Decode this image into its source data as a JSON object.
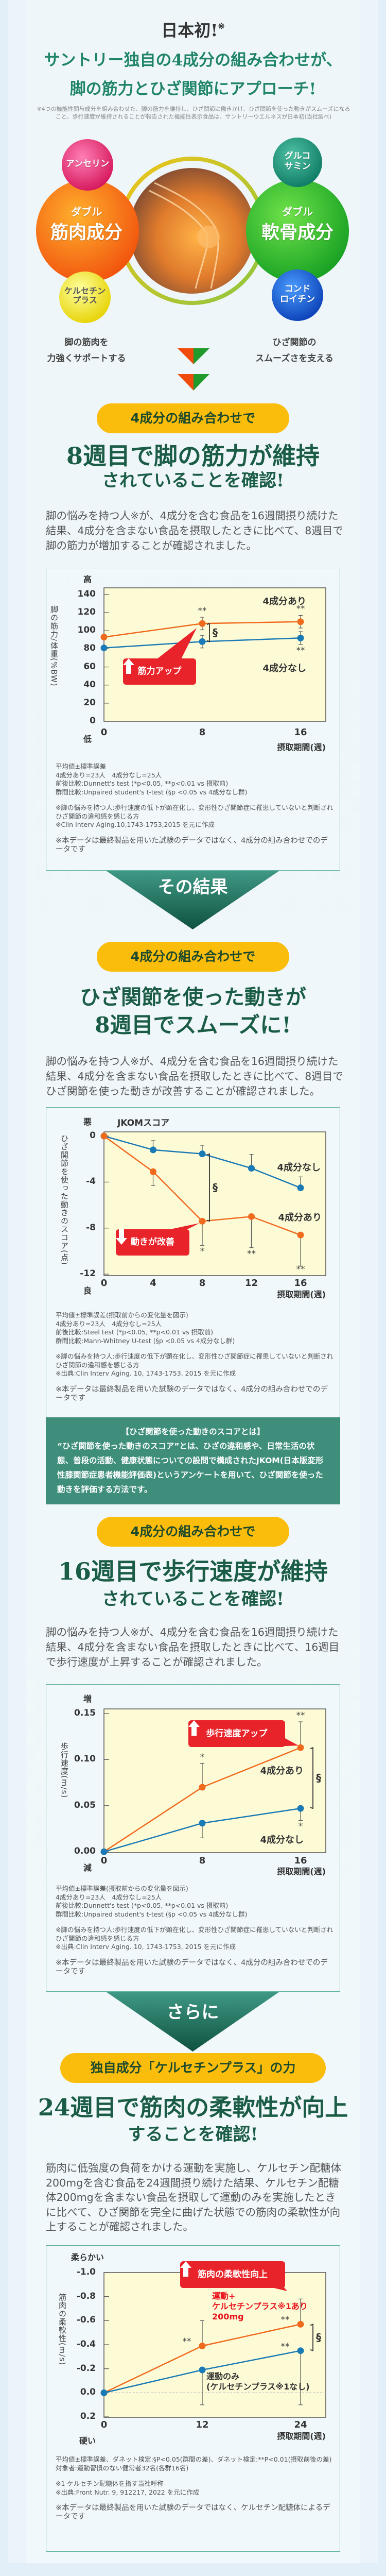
{
  "intro": {
    "badge": "日本初!",
    "badge_mark": "※",
    "headline_lines": [
      "サントリー独自の4成分の組み合わせが、",
      "脚の筋力とひざ関節にアプローチ!"
    ],
    "footnote": "※4つの機能性関与成分を組み合わせた、脚の筋力を維持し、ひざ関節に働きかけ、ひざ関節を使った動きがスムーズになること、歩行速度が維持されることが報告された機能性表示食品は、サントリーウエルネスが日本初(当社調べ)",
    "muscle": {
      "small": "ダブル",
      "big": "筋肉成分",
      "item1": "アンセリン",
      "item2": "ケルセチン\nプラス",
      "caption": [
        "脚の筋肉を",
        "力強くサポートする"
      ]
    },
    "cartilage": {
      "small": "ダブル",
      "big": "軟骨成分",
      "item1": "グルコ\nサミン",
      "item2": "コンド\nロイチン",
      "caption": [
        "ひざ関節の",
        "スムーズさを支える"
      ]
    }
  },
  "colors": {
    "accent_green": "#1a5c45",
    "pill": "#fbbd0c",
    "orange": "#f06a1e",
    "blue": "#1a7ab5",
    "callout_red": "#e9232a",
    "plot_bg": "#fdfbd6",
    "teal": "#3f8e7c"
  },
  "transitions": [
    "その結果",
    "さらに"
  ],
  "sections": [
    {
      "pill": "4成分の組み合わせで",
      "headline": [
        "8週目で脚の筋力が維持",
        "されていることを確認!"
      ],
      "body": "脚の悩みを持つ人※が、4成分を含む食品を16週間摂り続けた結果、4成分を含まない食品を摂取したときに比べて、8週目で脚の筋力が増加することが確認されました。",
      "notes": [
        [
          "平均値±標準誤差",
          "4成分あり=23人　4成分なし=25人",
          "前後比較:Dunnett's test (*p<0.05, **p<0.01 vs 摂取前)",
          "群間比較:Unpaired student's t-test (§p <0.05 vs 4成分なし群)"
        ],
        [
          "※脚の悩みを持つ人:歩行速度の低下が顕在化し、変形性ひざ関節症に罹患していないと判断されひざ関節の違和感を感じる方",
          "※Clin Interv Aging.10,1743-1753,2015 を元に作成"
        ]
      ],
      "disclaimer": "※本データは最終製品を用いた試験のデータではなく、4成分の組み合わせでのデータです"
    },
    {
      "pill": "4成分の組み合わせで",
      "headline": [
        "ひざ関節を使った動きが",
        "8週目でスムーズに!"
      ],
      "body": "脚の悩みを持つ人※が、4成分を含む食品を16週間摂り続けた結果、4成分を含まない食品を摂取したときに比べて、8週目でひざ関節を使った動きが改善することが確認されました。",
      "notes": [
        [
          "平均値±標準誤差(摂取前からの変化量を図示)",
          "4成分あり=23人　4成分なし=25人",
          "前後比較:Steel test (*p<0.05, **p<0.01 vs 摂取前)",
          "群間比較:Mann-Whitney U-test (§p <0.05 vs 4成分なし群)"
        ],
        [
          "※脚の悩みを持つ人:歩行速度の低下が顕在化し、変形性ひざ関節症に罹患していないと判断されひざ関節の違和感を感じる方",
          "※出典:Clin Interv Aging. 10, 1743-1753, 2015 を元に作成"
        ]
      ],
      "disclaimer": "※本データは最終製品を用いた試験のデータではなく、4成分の組み合わせでのデータです"
    },
    {
      "pill": "4成分の組み合わせで",
      "headline": [
        "16週目で歩行速度が維持",
        "されていることを確認!"
      ],
      "body": "脚の悩みを持つ人※が、4成分を含む食品を16週間摂り続けた結果、4成分を含まない食品を摂取したときに比べて、16週目で歩行速度が上昇することが確認されました。",
      "notes": [
        [
          "平均値±標準誤差(摂取前からの変化量を図示)",
          "4成分あり=23人　4成分なし=25人",
          "前後比較:Dunnett's test (*p<0.05, **p<0.01 vs 摂取前)",
          "群間比較:Unpaired student's t-test (§p <0.05 vs 4成分なし群)"
        ],
        [
          "※脚の悩みを持つ人:歩行速度の低下が顕在化し、変形性ひざ関節症に罹患していないと判断されひざ関節の違和感を感じる方",
          "※出典:Clin Interv Aging. 10, 1743-1753, 2015 を元に作成"
        ]
      ],
      "disclaimer": "※本データは最終製品を用いた試験のデータではなく、4成分の組み合わせでのデータです"
    },
    {
      "pill": "独自成分「ケルセチンプラス」の力",
      "headline": [
        "24週目で筋肉の柔軟性が向上",
        "することを確認!"
      ],
      "body": "筋肉に低強度の負荷をかける運動を実施し、ケルセチン配糖体200mgを含む食品を24週間摂り続けた結果、ケルセチン配糖体200mgを含まない食品を摂取して運動のみを実施したときに比べて、ひざ関節を完全に曲げた状態での筋肉の柔軟性が向上することが確認されました。",
      "notes": [
        [
          "平均値±標準誤差、ダネット検定:§P<0.05(群間の差)、ダネット検定:**P<0.01(摂取前後の差)",
          "対象者:運動習慣のない健常者32名(各群16名)"
        ],
        [
          "※1 ケルセチン配糖体を指す当社呼称",
          "※出典:Front Nutr. 9, 912217, 2022 を元に作成"
        ]
      ],
      "disclaimer": "※本データは最終製品を用いた試験のデータではなく、ケルセチン配糖体によるデータです"
    }
  ],
  "jkom": {
    "title": "【ひざ関節を使った動きのスコアとは】",
    "body": "“ひざ関節を使った動きのスコア”とは、ひざの違和感や、日常生活の状態、普段の活動、健康状態についての設問で構成されたJKOM(日本版変形性膝関節症患者機能評価表)というアンケートを用いて、ひざ関節を使った動きを評価する方法です。"
  },
  "chart_data": [
    {
      "type": "line",
      "ylabel": "脚の筋力/体重(%BW)",
      "y_high_label": "高",
      "y_low_label": "低",
      "xlabel": "摂取期間(週)",
      "xticks": [
        "0",
        "8",
        "16"
      ],
      "yticks": [
        "0",
        "20",
        "40",
        "60",
        "80",
        "100",
        "120",
        "140"
      ],
      "ylim": [
        0,
        140
      ],
      "series": [
        {
          "name_lines": [
            "4成分あり"
          ],
          "color": "#f06a1e",
          "x": [
            0,
            8,
            16
          ],
          "values": [
            93,
            108,
            110
          ],
          "error_upper": [
            null,
            115,
            117
          ],
          "error_lower": [
            null,
            101,
            103
          ],
          "sig": [
            null,
            "**",
            "**"
          ]
        },
        {
          "name_lines": [
            "4成分なし"
          ],
          "color": "#1a7ab5",
          "x": [
            0,
            8,
            16
          ],
          "values": [
            81,
            88,
            92
          ],
          "error_upper": [
            null,
            95,
            99
          ],
          "error_lower": [
            null,
            81,
            85
          ],
          "sig": [
            null,
            null,
            "**"
          ]
        }
      ],
      "group_significance": {
        "x": 8,
        "mark": "§"
      },
      "callout": {
        "text": "筋力アップ",
        "arrow": "up"
      }
    },
    {
      "type": "line",
      "title": "JKOMスコア",
      "ylabel": "ひざ関節を使った動きのスコア(点)",
      "y_high_label": "悪",
      "y_low_label": "良",
      "xlabel": "摂取期間(週)",
      "xticks": [
        "0",
        "4",
        "8",
        "12",
        "16"
      ],
      "yticks": [
        "0",
        "-4",
        "-8",
        "-12"
      ],
      "ylim": [
        -12,
        0
      ],
      "series": [
        {
          "name_lines": [
            "4成分なし"
          ],
          "color": "#1a7ab5",
          "x": [
            0,
            4,
            8,
            12,
            16
          ],
          "values": [
            0,
            -1.2,
            -1.55,
            -2.8,
            -4.5
          ],
          "error_upper": [
            null,
            -0.4,
            -0.8,
            -1.6,
            -3.55
          ],
          "error_lower": [
            null,
            null,
            null,
            null,
            null
          ],
          "sig": [
            null,
            null,
            null,
            null,
            null
          ]
        },
        {
          "name_lines": [
            "4成分あり"
          ],
          "color": "#f06a1e",
          "x": [
            0,
            4,
            8,
            12,
            16
          ],
          "values": [
            0,
            -3.1,
            -7.4,
            -7.0,
            -8.6
          ],
          "error_upper": [
            null,
            null,
            null,
            null,
            null
          ],
          "error_lower": [
            null,
            -4.3,
            -9.5,
            -9.7,
            -11.3
          ],
          "sig": [
            null,
            null,
            "*",
            "**",
            "**"
          ]
        }
      ],
      "group_significance": {
        "x": 8,
        "mark": "§"
      },
      "callout": {
        "text": "動きが改善",
        "arrow": "down"
      }
    },
    {
      "type": "line",
      "ylabel": "歩行速度(m/s)",
      "y_high_label": "増",
      "y_low_label": "減",
      "xlabel": "摂取期間(週)",
      "xticks": [
        "0",
        "8",
        "16"
      ],
      "yticks": [
        "0.00",
        "0.05",
        "0.10",
        "0.15"
      ],
      "ylim": [
        0,
        0.15
      ],
      "series": [
        {
          "name_lines": [
            "4成分あり"
          ],
          "color": "#f06a1e",
          "x": [
            0,
            8,
            16
          ],
          "values": [
            0,
            0.07,
            0.113
          ],
          "error_upper": [
            null,
            0.096,
            0.141
          ],
          "error_lower": [
            null,
            null,
            null
          ],
          "sig": [
            null,
            "*",
            "**"
          ]
        },
        {
          "name_lines": [
            "4成分なし"
          ],
          "color": "#1a7ab5",
          "x": [
            0,
            8,
            16
          ],
          "values": [
            0,
            0.031,
            0.047
          ],
          "error_upper": [
            null,
            null,
            null
          ],
          "error_lower": [
            null,
            0.015,
            0.034
          ],
          "sig": [
            null,
            null,
            "*"
          ]
        }
      ],
      "group_significance": {
        "x": 16,
        "mark": "§"
      },
      "callout": {
        "text": "歩行速度アップ",
        "arrow": "up"
      }
    },
    {
      "type": "line",
      "ylabel": "筋肉の柔軟性(m/s)",
      "y_high_label": "柔らかい",
      "y_low_label": "硬い",
      "xlabel": "摂取期間(週)",
      "xticks": [
        "0",
        "12",
        "24"
      ],
      "yticks": [
        "-1.0",
        "-0.8",
        "-0.6",
        "-0.4",
        "-0.2",
        "0.0",
        "0.2"
      ],
      "ylim": [
        0.2,
        -1.0
      ],
      "y_reversed": true,
      "baseline": 0,
      "series": [
        {
          "name_lines": [
            "運動+",
            "ケルセチンプラス※1あり",
            "200mg"
          ],
          "color": "#f06a1e",
          "label_color": "#e8141e",
          "x": [
            0,
            12,
            24
          ],
          "values": [
            0,
            -0.39,
            -0.57
          ],
          "error_upper": [
            null,
            -0.6,
            -0.78
          ],
          "error_lower": [
            null,
            null,
            null
          ],
          "sig": [
            null,
            "**",
            "**"
          ]
        },
        {
          "name_lines": [
            "運動のみ",
            "(ケルセチンプラス※1なし)"
          ],
          "color": "#1a7ab5",
          "label_color": "#333333",
          "x": [
            0,
            12,
            24
          ],
          "values": [
            0,
            -0.19,
            -0.35
          ],
          "error_upper": [
            null,
            null,
            null
          ],
          "error_lower": [
            null,
            0.1,
            0.1
          ],
          "sig": [
            null,
            null,
            "**"
          ]
        }
      ],
      "group_significance": {
        "x": 24,
        "mark": "§"
      },
      "callout": {
        "text": "筋肉の柔軟性向上",
        "arrow": "up"
      }
    }
  ]
}
